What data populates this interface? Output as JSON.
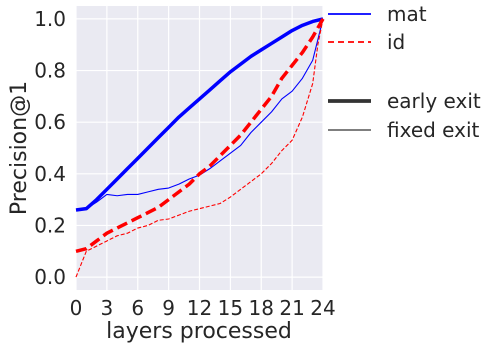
{
  "chart_data": {
    "type": "line",
    "xlabel": "layers processed",
    "ylabel": "Precision@1",
    "xlim": [
      0,
      24
    ],
    "ylim": [
      -0.05,
      1.05
    ],
    "xticks": [
      0,
      3,
      6,
      9,
      12,
      15,
      18,
      21,
      24
    ],
    "yticks": [
      0.0,
      0.2,
      0.4,
      0.6,
      0.8,
      1.0
    ],
    "xtick_labels": [
      "0",
      "3",
      "6",
      "9",
      "12",
      "15",
      "18",
      "21",
      "24"
    ],
    "ytick_labels": [
      "0.0",
      "0.2",
      "0.4",
      "0.6",
      "0.8",
      "1.0"
    ],
    "grid": true,
    "background": "#eaeaf2",
    "legend_position": "outside right",
    "legend": {
      "color_entries": [
        {
          "label": "mat",
          "color": "#0000ff",
          "style": "solid"
        },
        {
          "label": "id",
          "color": "#ff0000",
          "style": "dashed"
        }
      ],
      "width_entries": [
        {
          "label": "early exit",
          "color": "#333333",
          "width": "thick"
        },
        {
          "label": "fixed exit",
          "color": "#333333",
          "width": "thin"
        }
      ]
    },
    "series": [
      {
        "color": "#0000ff",
        "style": "solid",
        "width": "thick",
        "x": [
          0,
          1,
          2,
          3,
          4,
          5,
          6,
          7,
          8,
          9,
          10,
          11,
          12,
          13,
          14,
          15,
          16,
          17,
          18,
          19,
          20,
          21,
          22,
          23,
          24
        ],
        "y": [
          0.26,
          0.265,
          0.3,
          0.34,
          0.38,
          0.42,
          0.46,
          0.5,
          0.54,
          0.58,
          0.62,
          0.655,
          0.69,
          0.725,
          0.76,
          0.795,
          0.825,
          0.855,
          0.88,
          0.905,
          0.93,
          0.955,
          0.975,
          0.99,
          1.0
        ]
      },
      {
        "color": "#0000ff",
        "style": "solid",
        "width": "thin",
        "x": [
          0,
          1,
          2,
          3,
          4,
          5,
          6,
          7,
          8,
          9,
          10,
          11,
          12,
          13,
          14,
          15,
          16,
          17,
          18,
          19,
          20,
          21,
          22,
          23,
          24
        ],
        "y": [
          0.26,
          0.265,
          0.29,
          0.32,
          0.315,
          0.32,
          0.32,
          0.33,
          0.34,
          0.345,
          0.36,
          0.38,
          0.395,
          0.42,
          0.45,
          0.48,
          0.51,
          0.56,
          0.6,
          0.64,
          0.69,
          0.72,
          0.77,
          0.84,
          1.0
        ]
      },
      {
        "color": "#ff0000",
        "style": "dashed",
        "width": "thick",
        "x": [
          0,
          1,
          2,
          3,
          4,
          5,
          6,
          7,
          8,
          9,
          10,
          11,
          12,
          13,
          14,
          15,
          16,
          17,
          18,
          19,
          20,
          21,
          22,
          23,
          24
        ],
        "y": [
          0.1,
          0.11,
          0.14,
          0.17,
          0.19,
          0.21,
          0.23,
          0.25,
          0.27,
          0.3,
          0.33,
          0.36,
          0.4,
          0.43,
          0.47,
          0.51,
          0.55,
          0.6,
          0.65,
          0.7,
          0.77,
          0.82,
          0.87,
          0.93,
          1.0
        ]
      },
      {
        "color": "#ff0000",
        "style": "dashed",
        "width": "thin",
        "x": [
          0,
          1,
          2,
          3,
          4,
          5,
          6,
          7,
          8,
          9,
          10,
          11,
          12,
          13,
          14,
          15,
          16,
          17,
          18,
          19,
          20,
          21,
          22,
          23,
          23.5,
          24
        ],
        "y": [
          0.0,
          0.1,
          0.12,
          0.14,
          0.16,
          0.17,
          0.19,
          0.2,
          0.22,
          0.225,
          0.24,
          0.255,
          0.265,
          0.275,
          0.285,
          0.31,
          0.34,
          0.37,
          0.4,
          0.44,
          0.49,
          0.53,
          0.62,
          0.75,
          0.9,
          1.0
        ]
      }
    ]
  }
}
